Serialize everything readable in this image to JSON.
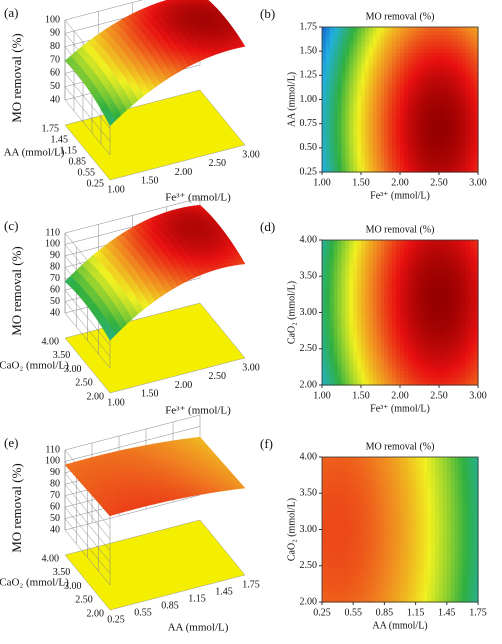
{
  "chart_data": [
    {
      "type": "surface3d",
      "label": "(a)",
      "zlabel": "MO removal (%)",
      "ylabel": "AA (mmol/L)",
      "xlabel": "Fe³⁺ (mmol/L)",
      "xlim": [
        1,
        3
      ],
      "xticks": [
        {
          "value": 1,
          "label": "1.00"
        },
        {
          "value": 1.5,
          "label": "1.50"
        },
        {
          "value": 2,
          "label": "2.00"
        },
        {
          "value": 2.5,
          "label": "2.50"
        },
        {
          "value": 3,
          "label": "3.00"
        }
      ],
      "ylim": [
        0.25,
        1.75
      ],
      "yticks": [
        0.25,
        0.55,
        0.85,
        1.15,
        1.45,
        1.75
      ],
      "zlim": [
        40,
        100
      ],
      "zticks": [
        40,
        50,
        60,
        70,
        80,
        90,
        100
      ]
    },
    {
      "type": "contour",
      "label": "(b)",
      "title": "MO removal (%)",
      "xlabel": "Fe³⁺ (mmol/L)",
      "ylabel": "AA (mmol/L)",
      "xlim": [
        1,
        3
      ],
      "xticks": [
        {
          "value": 1,
          "label": "1.00"
        },
        {
          "value": 1.5,
          "label": "1.50"
        },
        {
          "value": 2,
          "label": "2.00"
        },
        {
          "value": 2.5,
          "label": "2.50"
        },
        {
          "value": 3,
          "label": "3.00"
        }
      ],
      "ylim": [
        0.25,
        1.75
      ],
      "yticks": [
        0.25,
        {
          "value": 0.5,
          "label": "0.50"
        },
        0.75,
        {
          "value": 1,
          "label": "1.00"
        },
        1.25,
        {
          "value": 1.5,
          "label": "1.50"
        },
        1.75
      ]
    },
    {
      "type": "surface3d",
      "label": "(c)",
      "zlabel": "MO removal (%)",
      "ylabel": "CaO₂ (mmol/L)",
      "xlabel": "Fe³⁺ (mmol/L)",
      "xlim": [
        1,
        3
      ],
      "xticks": [
        {
          "value": 1,
          "label": "1.00"
        },
        {
          "value": 1.5,
          "label": "1.50"
        },
        {
          "value": 2,
          "label": "2.00"
        },
        {
          "value": 2.5,
          "label": "2.50"
        },
        {
          "value": 3,
          "label": "3.00"
        }
      ],
      "ylim": [
        2,
        4
      ],
      "yticks": [
        {
          "value": 2,
          "label": "2.00"
        },
        {
          "value": 2.5,
          "label": "2.50"
        },
        {
          "value": 3,
          "label": "3.00"
        },
        {
          "value": 3.5,
          "label": "3.50"
        },
        {
          "value": 4,
          "label": "4.00"
        }
      ],
      "zlim": [
        40,
        110
      ],
      "zticks": [
        40,
        50,
        60,
        70,
        80,
        90,
        100,
        110
      ]
    },
    {
      "type": "contour",
      "label": "(d)",
      "title": "MO removal (%)",
      "xlabel": "Fe³⁺ (mmol/L)",
      "ylabel": "CaO₂ (mmol/L)",
      "xlim": [
        1,
        3
      ],
      "xticks": [
        {
          "value": 1,
          "label": "1.00"
        },
        {
          "value": 1.5,
          "label": "1.50"
        },
        {
          "value": 2,
          "label": "2.00"
        },
        {
          "value": 2.5,
          "label": "2.50"
        },
        {
          "value": 3,
          "label": "3.00"
        }
      ],
      "ylim": [
        2,
        4
      ],
      "yticks": [
        {
          "value": 2,
          "label": "2.00"
        },
        {
          "value": 2.5,
          "label": "2.50"
        },
        {
          "value": 3,
          "label": "3.00"
        },
        {
          "value": 3.5,
          "label": "3.50"
        },
        {
          "value": 4,
          "label": "4.00"
        }
      ]
    },
    {
      "type": "surface3d",
      "label": "(e)",
      "zlabel": "MO removal (%)",
      "ylabel": "CaO₂ (mmol/L)",
      "xlabel": "AA (mmol/L)",
      "xlim": [
        0.25,
        1.75
      ],
      "xticks": [
        0.25,
        0.55,
        0.85,
        1.15,
        1.45,
        1.75
      ],
      "ylim": [
        2,
        4
      ],
      "yticks": [
        {
          "value": 2,
          "label": "2.00"
        },
        {
          "value": 2.5,
          "label": "2.50"
        },
        {
          "value": 3,
          "label": "3.00"
        },
        {
          "value": 3.5,
          "label": "3.50"
        },
        {
          "value": 4,
          "label": "4.00"
        }
      ],
      "zlim": [
        40,
        110
      ],
      "zticks": [
        40,
        50,
        60,
        70,
        80,
        90,
        100,
        110
      ]
    },
    {
      "type": "contour",
      "label": "(f)",
      "title": "MO removal (%)",
      "xlabel": "AA (mmol/L)",
      "ylabel": "CaO₂ (mmol/L)",
      "xlim": [
        0.25,
        1.75
      ],
      "xticks": [
        0.25,
        0.55,
        0.85,
        1.15,
        1.45,
        1.75
      ],
      "ylim": [
        2,
        4
      ],
      "yticks": [
        {
          "value": 2,
          "label": "2.00"
        },
        {
          "value": 2.5,
          "label": "2.50"
        },
        {
          "value": 3,
          "label": "3.00"
        },
        {
          "value": 3.5,
          "label": "3.50"
        },
        {
          "value": 4,
          "label": "4.00"
        }
      ]
    }
  ]
}
